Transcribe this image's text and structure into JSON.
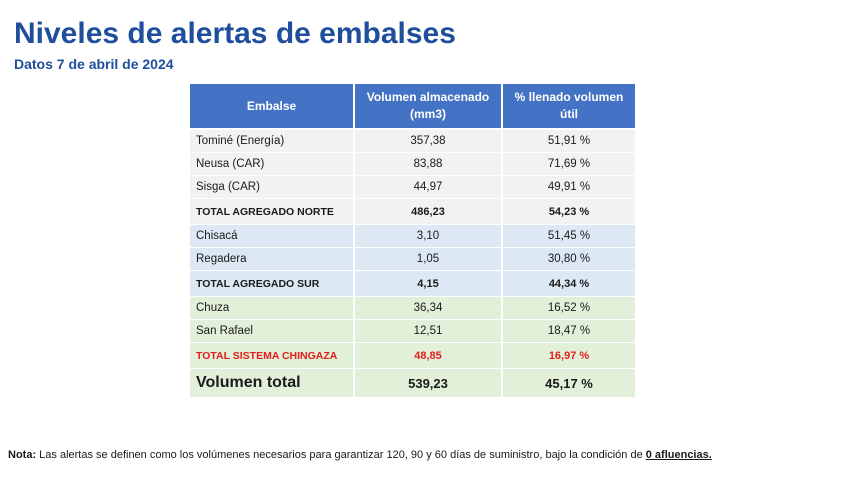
{
  "title": "Niveles de alertas de embalses",
  "subtitle": "Datos 7 de abril de 2024",
  "table": {
    "headers": [
      "Embalse",
      "Volumen almacenado (mm3)",
      "% llenado volumen útil"
    ],
    "rows": [
      {
        "name": "Tominé (Energía)",
        "volume": "357,38",
        "pct": "51,91 %"
      },
      {
        "name": "Neusa (CAR)",
        "volume": "83,88",
        "pct": "71,69 %"
      },
      {
        "name": "Sisga (CAR)",
        "volume": "44,97",
        "pct": "49,91 %"
      },
      {
        "name": "TOTAL AGREGADO NORTE",
        "volume": "486,23",
        "pct": "54,23 %"
      },
      {
        "name": "Chisacá",
        "volume": "3,10",
        "pct": "51,45 %"
      },
      {
        "name": "Regadera",
        "volume": "1,05",
        "pct": "30,80 %"
      },
      {
        "name": "TOTAL AGREGADO SUR",
        "volume": "4,15",
        "pct": "44,34 %"
      },
      {
        "name": "Chuza",
        "volume": "36,34",
        "pct": "16,52 %"
      },
      {
        "name": "San Rafael",
        "volume": "12,51",
        "pct": "18,47 %"
      },
      {
        "name": "TOTAL SISTEMA CHINGAZA",
        "volume": "48,85",
        "pct": "16,97 %"
      },
      {
        "name": "Volumen total",
        "volume": "539,23",
        "pct": "45,17 %"
      }
    ]
  },
  "note": {
    "label": "Nota:",
    "text": " Las alertas se definen como los volúmenes necesarios para garantizar 120, 90 y 60 días de suministro, bajo la condición de ",
    "emphasis": "0 afluencias."
  },
  "colors": {
    "title": "#1f4e9c",
    "header_bg": "#4472c4",
    "norte_bg": "#f2f2f2",
    "sur_bg": "#dde8f5",
    "chingaza_bg": "#e2efd9",
    "alert_red": "#e0201a"
  }
}
